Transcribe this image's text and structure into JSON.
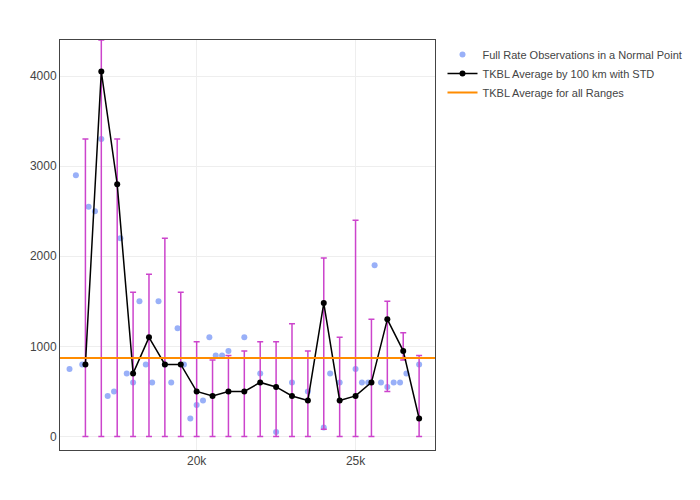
{
  "chart_data": {
    "type": "scatter",
    "series": [
      {
        "name": "Full Rate Observations in a Normal Point",
        "type": "scatter",
        "color": "#6e8ef5",
        "marker": "circle",
        "x": [
          16000,
          16200,
          16400,
          16600,
          16800,
          17000,
          17200,
          17400,
          17600,
          17800,
          18000,
          18200,
          18400,
          18600,
          18800,
          19000,
          19200,
          19400,
          19600,
          19800,
          20000,
          20200,
          20400,
          20600,
          20800,
          21000,
          21500,
          22000,
          22500,
          23000,
          23500,
          24000,
          24200,
          24500,
          25000,
          25200,
          25400,
          25600,
          25800,
          26000,
          26200,
          26400,
          26600,
          27000
        ],
        "values": [
          750,
          2900,
          800,
          2550,
          2500,
          3300,
          450,
          500,
          2200,
          700,
          600,
          1500,
          800,
          600,
          1500,
          800,
          600,
          1200,
          800,
          200,
          350,
          400,
          1100,
          900,
          900,
          950,
          1100,
          700,
          50,
          600,
          500,
          100,
          700,
          600,
          750,
          600,
          600,
          1900,
          600,
          550,
          600,
          600,
          700,
          800
        ]
      },
      {
        "name": "TKBL Average by 100 km with STD",
        "type": "line",
        "color": "black",
        "marker": "circle",
        "line_style": "solid",
        "x": [
          16500,
          17000,
          17500,
          18000,
          18500,
          19000,
          19500,
          20000,
          20500,
          21000,
          21500,
          22000,
          22500,
          23000,
          23500,
          24000,
          24500,
          25000,
          25500,
          26000,
          26500,
          27000
        ],
        "values": [
          800,
          4050,
          2800,
          700,
          1100,
          800,
          800,
          500,
          450,
          500,
          500,
          600,
          550,
          450,
          400,
          1480,
          400,
          450,
          600,
          1300,
          950,
          200
        ],
        "error_bars": {
          "minus": [
            800,
            4050,
            2800,
            700,
            1100,
            800,
            800,
            500,
            450,
            500,
            500,
            600,
            550,
            450,
            400,
            1400,
            400,
            450,
            600,
            800,
            100,
            200
          ],
          "plus": [
            2500,
            350,
            500,
            900,
            700,
            1400,
            800,
            550,
            400,
            400,
            450,
            450,
            500,
            800,
            550,
            500,
            700,
            1950,
            700,
            200,
            200,
            700
          ],
          "color": "#cc44cc"
        }
      },
      {
        "name": "TKBL Average for all Ranges",
        "type": "hline",
        "color": "#ff8c00",
        "line_style": "solid",
        "values": [
          870
        ]
      }
    ],
    "xlim": [
      15700,
      27500
    ],
    "xticks": [
      {
        "value": 20000,
        "label": "20k"
      },
      {
        "value": 25000,
        "label": "25k"
      }
    ],
    "ylim": [
      -150,
      4400
    ],
    "yticks": [
      0,
      1000,
      2000,
      3000,
      4000
    ],
    "grid": true,
    "legend": "right"
  }
}
